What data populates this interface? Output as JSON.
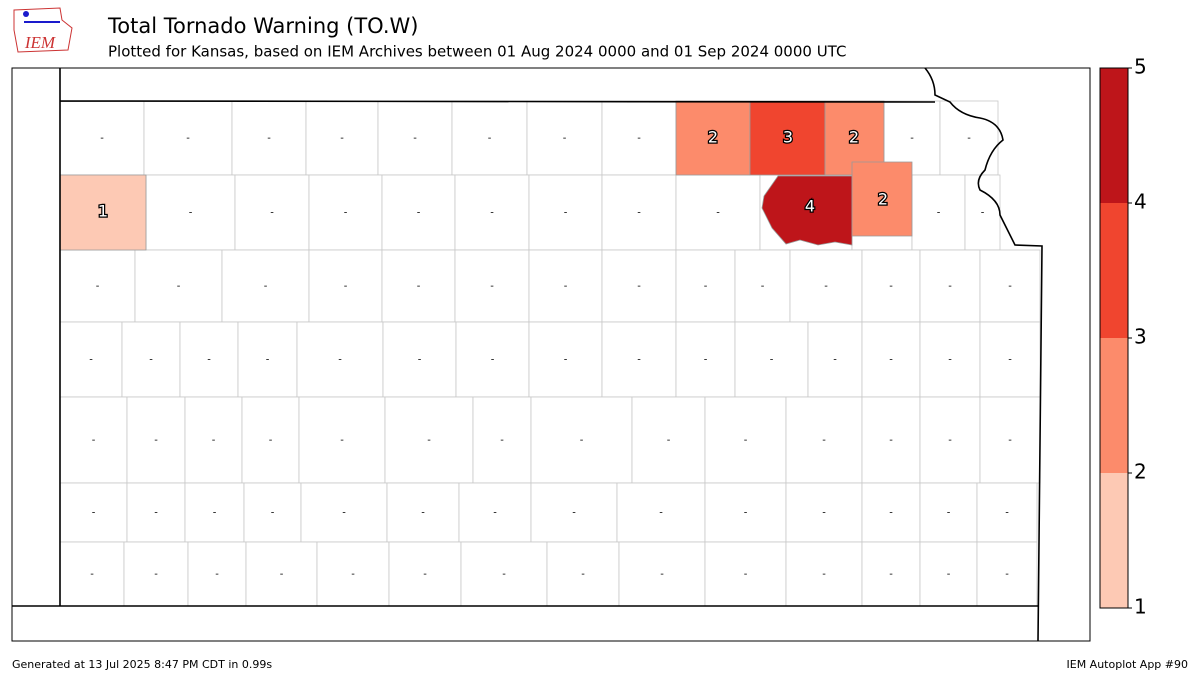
{
  "header": {
    "title": "Total Tornado Warning (TO.W)",
    "subtitle": "Plotted for Kansas, based on IEM Archives  between 01 Aug 2024 0000 and 01 Sep 2024 0000 UTC",
    "logo": "IEM"
  },
  "map": {
    "no_data_label": "-",
    "counties": [
      {
        "value": 1
      },
      {
        "value": 2
      },
      {
        "value": 3
      },
      {
        "value": 2
      },
      {
        "value": 4
      },
      {
        "value": 2
      }
    ]
  },
  "colorbar": {
    "ticks": [
      1,
      2,
      3,
      4,
      5
    ],
    "colors": [
      "#fdc9b4",
      "#fc8b6b",
      "#f0452f",
      "#be151a"
    ]
  },
  "footer": {
    "left": "Generated at 13 Jul 2025 8:47 PM CDT in 0.99s",
    "right": "IEM Autoplot App #90"
  }
}
